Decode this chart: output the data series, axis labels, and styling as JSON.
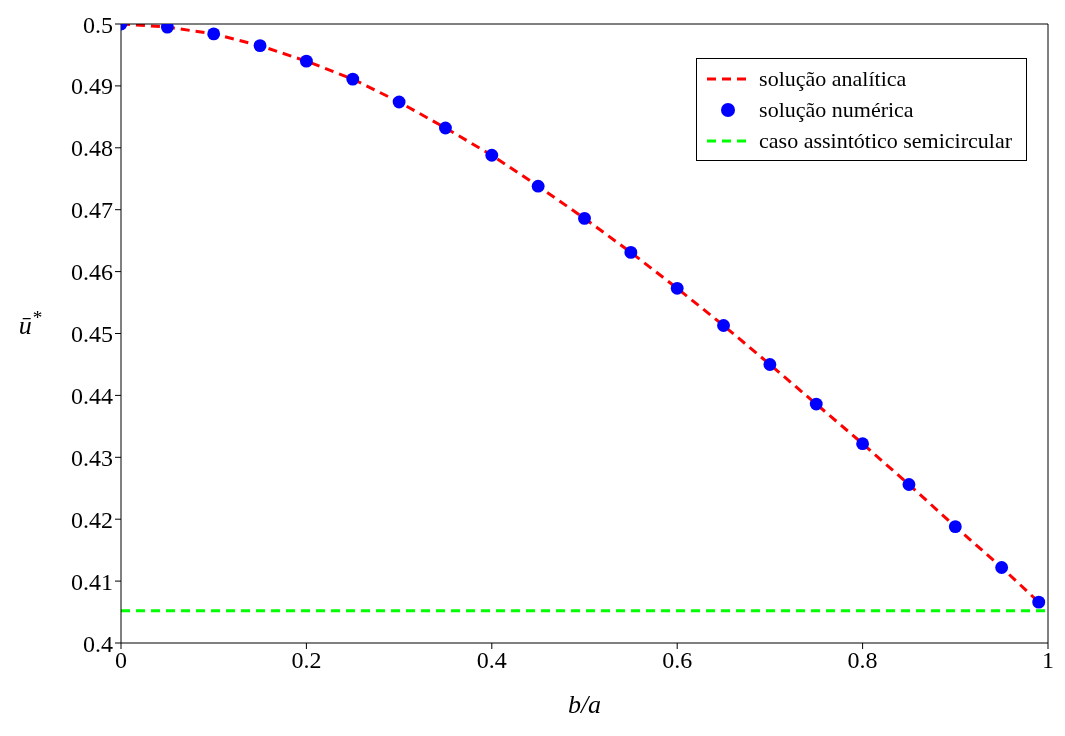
{
  "chart_data": {
    "type": "line",
    "xlabel": "b/a",
    "ylabel": "ū$^{*}$",
    "xlim": [
      0,
      1
    ],
    "ylim": [
      0.4,
      0.5
    ],
    "xticks": [
      0,
      0.2,
      0.4,
      0.6,
      0.8,
      1
    ],
    "yticks": [
      0.4,
      0.41,
      0.42,
      0.43,
      0.44,
      0.45,
      0.46,
      0.47,
      0.48,
      0.49,
      0.5
    ],
    "grid": false,
    "legend": "top right",
    "series": [
      {
        "name": "solução analítica",
        "line_style": "dashed",
        "marker": "none",
        "color": "#ff0000",
        "x": [
          0,
          0.05,
          0.1,
          0.15,
          0.2,
          0.25,
          0.3,
          0.35,
          0.4,
          0.45,
          0.5,
          0.55,
          0.6,
          0.65,
          0.7,
          0.75,
          0.8,
          0.85,
          0.9,
          0.95,
          0.99
        ],
        "values": [
          0.5,
          0.4995,
          0.4984,
          0.4965,
          0.494,
          0.4911,
          0.4874,
          0.4832,
          0.4788,
          0.4738,
          0.4686,
          0.4631,
          0.4573,
          0.4513,
          0.445,
          0.4386,
          0.4322,
          0.4256,
          0.4188,
          0.4122,
          0.4066
        ]
      },
      {
        "name": "solução numérica",
        "type": "scatter",
        "marker": "circle",
        "color": "#0000ff",
        "x": [
          0,
          0.05,
          0.1,
          0.15,
          0.2,
          0.25,
          0.3,
          0.35,
          0.4,
          0.45,
          0.5,
          0.55,
          0.6,
          0.65,
          0.7,
          0.75,
          0.8,
          0.85,
          0.9,
          0.95,
          0.99
        ],
        "values": [
          0.5,
          0.4995,
          0.4984,
          0.4965,
          0.494,
          0.4911,
          0.4874,
          0.4832,
          0.4788,
          0.4738,
          0.4686,
          0.4631,
          0.4573,
          0.4513,
          0.445,
          0.4386,
          0.4322,
          0.4256,
          0.4188,
          0.4122,
          0.4066
        ]
      },
      {
        "name": "caso assintótico semicircular",
        "type": "line",
        "line_style": "dashed",
        "marker": "none",
        "color": "#00ff00",
        "x": [
          0,
          1
        ],
        "values": [
          0.4052,
          0.4052
        ]
      }
    ]
  }
}
